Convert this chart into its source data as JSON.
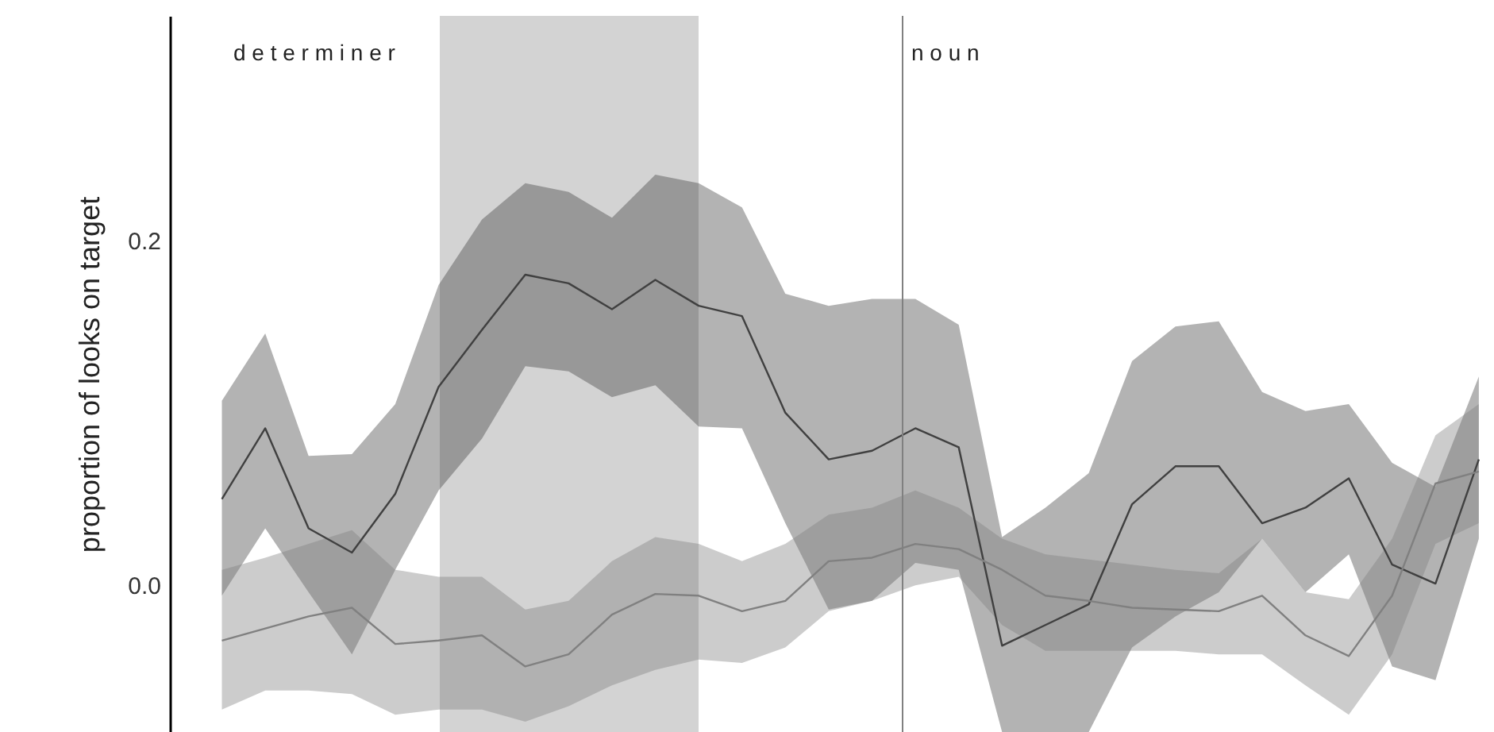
{
  "chart_data": {
    "type": "line",
    "ylabel": "proportion of looks on target",
    "categories": [
      null,
      null,
      null,
      null,
      null,
      null,
      null,
      null,
      null,
      null,
      null,
      null,
      null,
      null,
      null,
      null,
      null,
      null,
      null,
      null,
      null,
      null,
      null,
      null,
      null,
      null,
      null,
      null,
      null,
      null
    ],
    "ylim": [
      -0.085,
      0.33
    ],
    "yticks": [
      {
        "value": 0,
        "label": "0.0"
      },
      0.2
    ],
    "tick_labels": "y",
    "series": [
      {
        "color": "#404040",
        "values": [
          0.05,
          0.091,
          0.033,
          0.019,
          0.053,
          0.115,
          0.148,
          0.18,
          0.175,
          0.16,
          0.177,
          0.162,
          0.156,
          0.1,
          0.073,
          0.078,
          0.091,
          0.08,
          -0.035,
          -0.023,
          -0.011,
          0.047,
          0.069,
          0.069,
          0.036,
          0.045,
          0.062,
          0.012,
          0.001,
          0.073
        ],
        "upper": [
          0.107,
          0.146,
          0.075,
          0.076,
          0.105,
          0.174,
          0.212,
          0.233,
          0.228,
          0.213,
          0.238,
          0.233,
          0.219,
          0.169,
          0.162,
          0.166,
          0.166,
          0.151,
          0.028,
          0.045,
          0.065,
          0.13,
          0.15,
          0.153,
          0.112,
          0.101,
          0.105,
          0.071,
          0.057,
          0.121
        ],
        "lower": [
          -0.006,
          0.033,
          -0.004,
          -0.04,
          0.009,
          0.055,
          0.085,
          0.127,
          0.124,
          0.109,
          0.116,
          0.092,
          0.091,
          0.036,
          -0.014,
          -0.009,
          0.013,
          0.009,
          -0.085,
          -0.085,
          -0.085,
          -0.036,
          -0.018,
          -0.004,
          0.027,
          -0.004,
          0.018,
          -0.047,
          -0.055,
          0.027
        ]
      },
      {
        "color": "#808080",
        "values": [
          -0.032,
          -0.025,
          -0.018,
          -0.013,
          -0.034,
          -0.032,
          -0.029,
          -0.047,
          -0.04,
          -0.017,
          -0.005,
          -0.006,
          -0.015,
          -0.009,
          0.014,
          0.016,
          0.024,
          0.021,
          0.009,
          -0.006,
          -0.009,
          -0.013,
          -0.014,
          -0.015,
          -0.006,
          -0.029,
          -0.041,
          -0.006,
          0.059,
          0.066
        ],
        "upper": [
          0.009,
          0.016,
          0.024,
          0.032,
          0.009,
          0.005,
          0.005,
          -0.014,
          -0.009,
          0.014,
          0.028,
          0.024,
          0.014,
          0.024,
          0.041,
          0.045,
          0.055,
          0.045,
          0.027,
          0.018,
          0.015,
          0.012,
          0.009,
          0.007,
          0.027,
          -0.004,
          -0.008,
          0.027,
          0.087,
          0.105
        ],
        "lower": [
          -0.072,
          -0.061,
          -0.061,
          -0.063,
          -0.075,
          -0.072,
          -0.072,
          -0.079,
          -0.07,
          -0.058,
          -0.049,
          -0.043,
          -0.045,
          -0.036,
          -0.015,
          -0.009,
          0.0,
          0.005,
          -0.023,
          -0.038,
          -0.038,
          -0.038,
          -0.038,
          -0.04,
          -0.04,
          -0.058,
          -0.075,
          -0.04,
          0.024,
          0.036
        ]
      }
    ],
    "annotations": [
      "d e t e r m i n e r",
      "n o u n"
    ]
  }
}
